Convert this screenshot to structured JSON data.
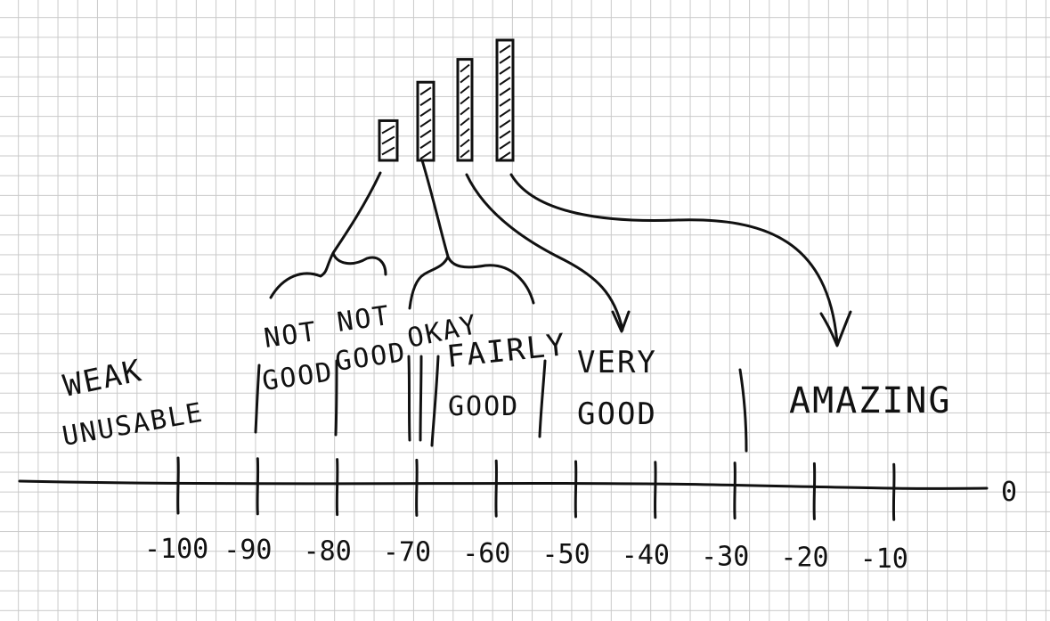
{
  "axis": {
    "end_label": "0",
    "ticks": [
      "-100",
      "-90",
      "-80",
      "-70",
      "-60",
      "-50",
      "-40",
      "-30",
      "-20",
      "-10"
    ],
    "tick_values": [
      -100,
      -90,
      -80,
      -70,
      -60,
      -50,
      -40,
      -30,
      -20,
      -10
    ]
  },
  "categories": [
    {
      "line1": "WEAK",
      "line2": "UNUSABLE"
    },
    {
      "line1": "NOT",
      "line2": "GOOD"
    },
    {
      "line1": "NOT",
      "line2": "GOOD"
    },
    {
      "line1": "OKAY",
      "line2": ""
    },
    {
      "line1": "FAIRLY",
      "line2": "GOOD"
    },
    {
      "line1": "VERY",
      "line2": "GOOD"
    },
    {
      "line1": "AMAZING",
      "line2": ""
    }
  ],
  "bars": {
    "count": 4,
    "relative_heights": [
      0.33,
      0.65,
      0.84,
      1.0
    ]
  },
  "colors": {
    "ink": "#111111",
    "grid": "#c9c9c9",
    "paper": "#ffffff"
  }
}
